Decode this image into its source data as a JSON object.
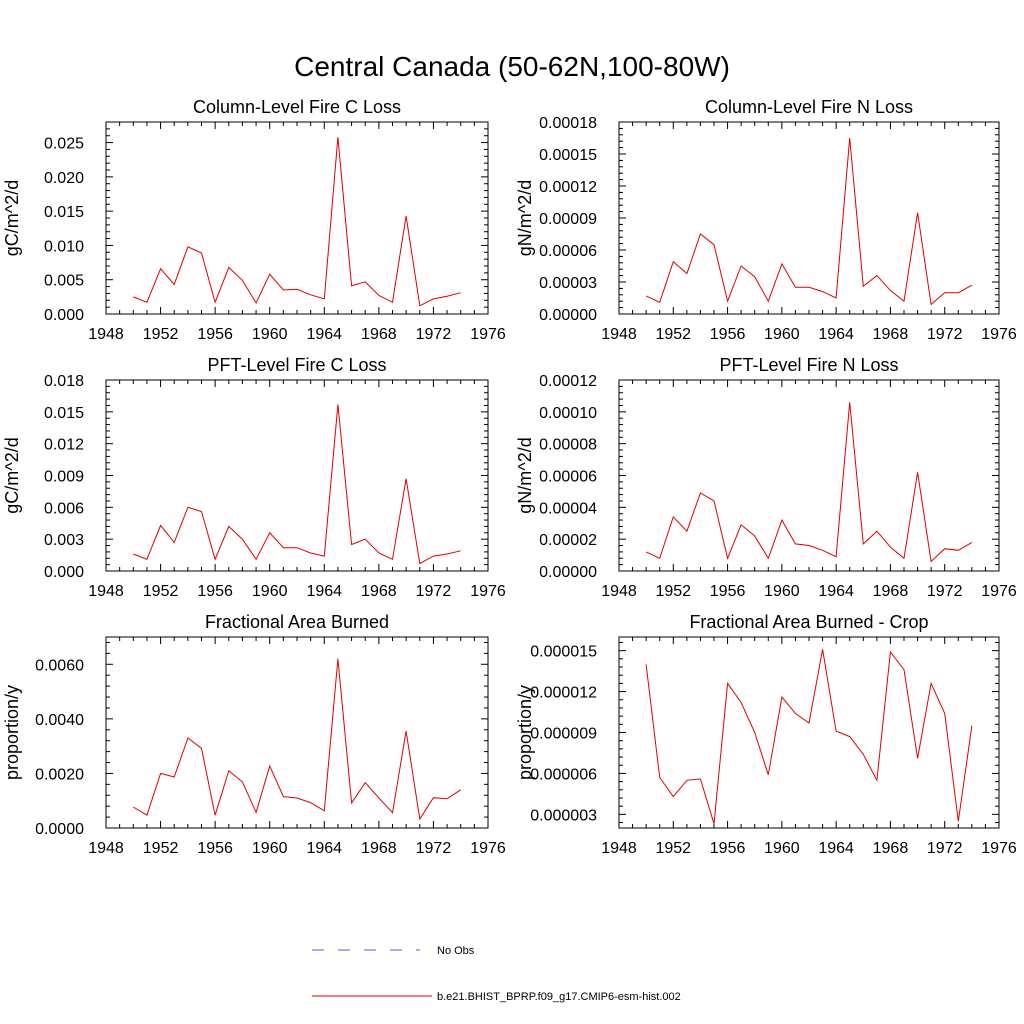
{
  "figure": {
    "title": "Central Canada (50-62N,100-80W)"
  },
  "legend": {
    "entries": [
      {
        "label": "No Obs",
        "color": "#5b5bd6",
        "style": "dashed"
      },
      {
        "label": "b.e21.BHIST_BPRP.f09_g17.CMIP6-esm-hist.002",
        "color": "#e00000",
        "style": "solid"
      }
    ]
  },
  "chart_data": [
    {
      "type": "line",
      "title": "Column-Level Fire C Loss",
      "xlabel": "",
      "ylabel": "gC/m^2/d",
      "xlim": [
        1948,
        1976
      ],
      "ylim": [
        0,
        0.028
      ],
      "x_ticks": [
        1948,
        1952,
        1956,
        1960,
        1964,
        1968,
        1972,
        1976
      ],
      "y_ticks": [
        "0.000",
        "0.005",
        "0.010",
        "0.015",
        "0.020",
        "0.025"
      ],
      "y_tick_values": [
        0,
        0.005,
        0.01,
        0.015,
        0.02,
        0.025
      ],
      "series": [
        {
          "color": "#e00000",
          "x": [
            1950,
            1951,
            1952,
            1953,
            1954,
            1955,
            1956,
            1957,
            1958,
            1959,
            1960,
            1961,
            1962,
            1963,
            1964,
            1965,
            1966,
            1967,
            1968,
            1969,
            1970,
            1971,
            1972,
            1973,
            1974
          ],
          "values": [
            0.0025,
            0.0017,
            0.0066,
            0.0043,
            0.0098,
            0.0089,
            0.0017,
            0.0068,
            0.0049,
            0.0016,
            0.0058,
            0.0035,
            0.0036,
            0.0028,
            0.0022,
            0.0258,
            0.0041,
            0.0047,
            0.0027,
            0.0017,
            0.0143,
            0.0012,
            0.0022,
            0.0026,
            0.0031
          ]
        }
      ]
    },
    {
      "type": "line",
      "title": "Column-Level Fire N Loss",
      "xlabel": "",
      "ylabel": "gN/m^2/d",
      "xlim": [
        1948,
        1976
      ],
      "ylim": [
        0,
        0.00018
      ],
      "x_ticks": [
        1948,
        1952,
        1956,
        1960,
        1964,
        1968,
        1972,
        1976
      ],
      "y_ticks": [
        "0.00000",
        "0.00003",
        "0.00006",
        "0.00009",
        "0.00012",
        "0.00015",
        "0.00018"
      ],
      "y_tick_values": [
        0,
        3e-05,
        6e-05,
        9e-05,
        0.00012,
        0.00015,
        0.00018
      ],
      "series": [
        {
          "color": "#e00000",
          "x": [
            1950,
            1951,
            1952,
            1953,
            1954,
            1955,
            1956,
            1957,
            1958,
            1959,
            1960,
            1961,
            1962,
            1963,
            1964,
            1965,
            1966,
            1967,
            1968,
            1969,
            1970,
            1971,
            1972,
            1973,
            1974
          ],
          "values": [
            1.7e-05,
            1.1e-05,
            4.9e-05,
            3.8e-05,
            7.5e-05,
            6.5e-05,
            1.2e-05,
            4.5e-05,
            3.5e-05,
            1.2e-05,
            4.7e-05,
            2.5e-05,
            2.5e-05,
            2.1e-05,
            1.5e-05,
            0.000165,
            2.6e-05,
            3.6e-05,
            2.2e-05,
            1.2e-05,
            9.5e-05,
            9e-06,
            2e-05,
            2e-05,
            2.7e-05
          ]
        }
      ]
    },
    {
      "type": "line",
      "title": "PFT-Level Fire C Loss",
      "xlabel": "",
      "ylabel": "gC/m^2/d",
      "xlim": [
        1948,
        1976
      ],
      "ylim": [
        0,
        0.018
      ],
      "x_ticks": [
        1948,
        1952,
        1956,
        1960,
        1964,
        1968,
        1972,
        1976
      ],
      "y_ticks": [
        "0.000",
        "0.003",
        "0.006",
        "0.009",
        "0.012",
        "0.015",
        "0.018"
      ],
      "y_tick_values": [
        0,
        0.003,
        0.006,
        0.009,
        0.012,
        0.015,
        0.018
      ],
      "series": [
        {
          "color": "#e00000",
          "x": [
            1950,
            1951,
            1952,
            1953,
            1954,
            1955,
            1956,
            1957,
            1958,
            1959,
            1960,
            1961,
            1962,
            1963,
            1964,
            1965,
            1966,
            1967,
            1968,
            1969,
            1970,
            1971,
            1972,
            1973,
            1974
          ],
          "values": [
            0.0016,
            0.0011,
            0.0043,
            0.0027,
            0.006,
            0.0056,
            0.0011,
            0.0042,
            0.003,
            0.0011,
            0.0036,
            0.0022,
            0.0022,
            0.0017,
            0.0014,
            0.0157,
            0.0025,
            0.003,
            0.0017,
            0.0011,
            0.0087,
            0.0007,
            0.0014,
            0.0016,
            0.0019
          ]
        }
      ]
    },
    {
      "type": "line",
      "title": "PFT-Level Fire N Loss",
      "xlabel": "",
      "ylabel": "gN/m^2/d",
      "xlim": [
        1948,
        1976
      ],
      "ylim": [
        0,
        0.00012
      ],
      "x_ticks": [
        1948,
        1952,
        1956,
        1960,
        1964,
        1968,
        1972,
        1976
      ],
      "y_ticks": [
        "0.00000",
        "0.00002",
        "0.00004",
        "0.00006",
        "0.00008",
        "0.00010",
        "0.00012"
      ],
      "y_tick_values": [
        0,
        2e-05,
        4e-05,
        6e-05,
        8e-05,
        0.0001,
        0.00012
      ],
      "series": [
        {
          "color": "#e00000",
          "x": [
            1950,
            1951,
            1952,
            1953,
            1954,
            1955,
            1956,
            1957,
            1958,
            1959,
            1960,
            1961,
            1962,
            1963,
            1964,
            1965,
            1966,
            1967,
            1968,
            1969,
            1970,
            1971,
            1972,
            1973,
            1974
          ],
          "values": [
            1.2e-05,
            8e-06,
            3.4e-05,
            2.5e-05,
            4.9e-05,
            4.4e-05,
            8e-06,
            2.9e-05,
            2.2e-05,
            8e-06,
            3.2e-05,
            1.7e-05,
            1.6e-05,
            1.3e-05,
            9e-06,
            0.000106,
            1.7e-05,
            2.5e-05,
            1.5e-05,
            8e-06,
            6.2e-05,
            6e-06,
            1.4e-05,
            1.3e-05,
            1.8e-05
          ]
        }
      ]
    },
    {
      "type": "line",
      "title": "Fractional Area Burned",
      "xlabel": "",
      "ylabel": "proportion/y",
      "xlim": [
        1948,
        1976
      ],
      "ylim": [
        0,
        0.007
      ],
      "x_ticks": [
        1948,
        1952,
        1956,
        1960,
        1964,
        1968,
        1972,
        1976
      ],
      "y_ticks": [
        "0.0000",
        "0.0020",
        "0.0040",
        "0.0060"
      ],
      "y_tick_values": [
        0,
        0.002,
        0.004,
        0.006
      ],
      "series": [
        {
          "color": "#e00000",
          "x": [
            1950,
            1951,
            1952,
            1953,
            1954,
            1955,
            1956,
            1957,
            1958,
            1959,
            1960,
            1961,
            1962,
            1963,
            1964,
            1965,
            1966,
            1967,
            1968,
            1969,
            1970,
            1971,
            1972,
            1973,
            1974
          ],
          "values": [
            0.00077,
            0.00047,
            0.002,
            0.00187,
            0.0033,
            0.00292,
            0.00047,
            0.0021,
            0.00169,
            0.00057,
            0.00227,
            0.00115,
            0.0011,
            0.00093,
            0.00063,
            0.0062,
            0.00092,
            0.00166,
            0.0011,
            0.00056,
            0.00355,
            0.00033,
            0.00111,
            0.00107,
            0.0014
          ]
        }
      ]
    },
    {
      "type": "line",
      "title": "Fractional Area Burned - Crop",
      "xlabel": "",
      "ylabel": "proportion/y",
      "xlim": [
        1948,
        1976
      ],
      "ylim": [
        2e-06,
        1.6e-05
      ],
      "x_ticks": [
        1948,
        1952,
        1956,
        1960,
        1964,
        1968,
        1972,
        1976
      ],
      "y_ticks": [
        "0.000003",
        "0.000006",
        "0.000009",
        "0.000012",
        "0.000015"
      ],
      "y_tick_values": [
        3e-06,
        6e-06,
        9e-06,
        1.2e-05,
        1.5e-05
      ],
      "series": [
        {
          "color": "#e00000",
          "x": [
            1950,
            1951,
            1952,
            1953,
            1954,
            1955,
            1956,
            1957,
            1958,
            1959,
            1960,
            1961,
            1962,
            1963,
            1964,
            1965,
            1966,
            1967,
            1968,
            1969,
            1970,
            1971,
            1972,
            1973,
            1974
          ],
          "values": [
            1.4e-05,
            5.7e-06,
            4.3e-06,
            5.5e-06,
            5.6e-06,
            2.3e-06,
            1.26e-05,
            1.12e-05,
            9e-06,
            5.9e-06,
            1.16e-05,
            1.04e-05,
            9.7e-06,
            1.51e-05,
            9.1e-06,
            8.7e-06,
            7.4e-06,
            5.5e-06,
            1.49e-05,
            1.36e-05,
            7.1e-06,
            1.26e-05,
            1.04e-05,
            2.5e-06,
            9.5e-06
          ]
        }
      ]
    }
  ]
}
